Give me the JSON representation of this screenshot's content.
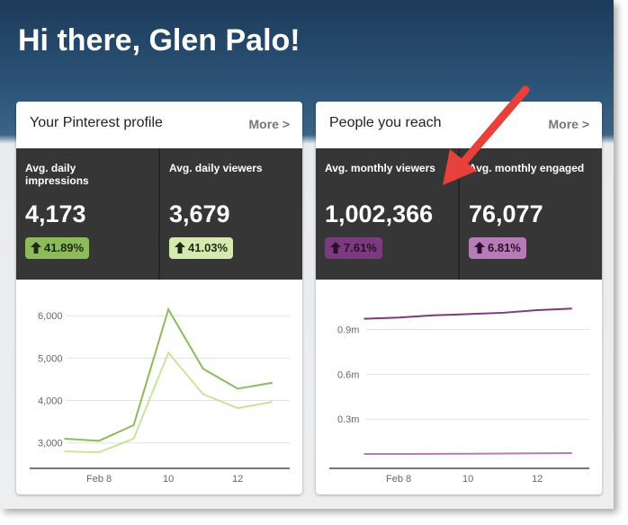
{
  "header": {
    "title": "Hi there, Glen Palo!"
  },
  "cards": [
    {
      "title": "Your Pinterest profile",
      "more": "More >",
      "stats": [
        {
          "label": "Avg. daily impressions",
          "value": "4,173",
          "change": "41.89%",
          "color": "#8dbb5c",
          "text_color": "#1f2a10"
        },
        {
          "label": "Avg. daily viewers",
          "value": "3,679",
          "change": "41.03%",
          "color": "#d4eab0",
          "text_color": "#1f2a10"
        }
      ],
      "chart": {
        "type": "line",
        "x": [
          7,
          8,
          9,
          10,
          11,
          12,
          13
        ],
        "xlim": [
          6,
          13.5
        ],
        "xticks": [
          {
            "value": 8,
            "label": "Feb 8"
          },
          10,
          12
        ],
        "ylim": [
          2400,
          6450
        ],
        "yticks": [
          {
            "value": 3000,
            "label": "3,000"
          },
          {
            "value": 4000,
            "label": "4,000"
          },
          {
            "value": 5000,
            "label": "5,000"
          },
          {
            "value": 6000,
            "label": "6,000"
          }
        ],
        "series": [
          {
            "color": "#8dbb5c",
            "values": [
              3100,
              3050,
              3420,
              6150,
              4750,
              4280,
              4420
            ]
          },
          {
            "color": "#c9e3a0",
            "values": [
              2800,
              2780,
              3100,
              5130,
              4150,
              3820,
              3970
            ]
          }
        ]
      }
    },
    {
      "title": "People you reach",
      "more": "More >",
      "stats": [
        {
          "label": "Avg. monthly viewers",
          "value": "1,002,366",
          "change": "7.61%",
          "color": "#7b3a7e",
          "text_color": "#2a0f2b"
        },
        {
          "label": "Avg. monthly engaged",
          "value": "76,077",
          "change": "6.81%",
          "color": "#b77bb8",
          "text_color": "#2a0f2b"
        }
      ],
      "chart": {
        "type": "line",
        "x": [
          7,
          8,
          9,
          10,
          11,
          12,
          13
        ],
        "xlim": [
          6,
          13.5
        ],
        "xticks": [
          {
            "value": 8,
            "label": "Feb 8"
          },
          10,
          12
        ],
        "ylim": [
          -0.03,
          1.12
        ],
        "yticks": [
          {
            "value": 0.3,
            "label": "0.3m"
          },
          {
            "value": 0.6,
            "label": "0.6m"
          },
          {
            "value": 0.9,
            "label": "0.9m"
          }
        ],
        "series": [
          {
            "color": "#7b3a7e",
            "values": [
              0.972,
              0.98,
              0.995,
              1.003,
              1.012,
              1.03,
              1.04
            ]
          },
          {
            "color": "#b77bb8",
            "values": [
              0.066,
              0.066,
              0.067,
              0.068,
              0.069,
              0.071,
              0.072
            ]
          }
        ]
      }
    }
  ]
}
